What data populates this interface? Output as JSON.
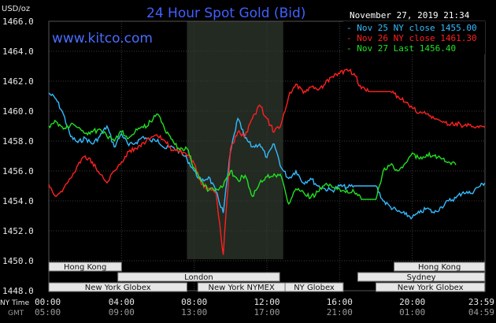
{
  "chart_data": {
    "type": "line",
    "title": "24 Hour Spot Gold (Bid)",
    "site": "www.kitco.com",
    "ylabel": "USD/oz",
    "timestamp": "November 27, 2019 21:34",
    "ylim": [
      1448.0,
      1466.0
    ],
    "yticks": [
      "1466.0",
      "1464.0",
      "1462.0",
      "1460.0",
      "1458.0",
      "1456.0",
      "1454.0",
      "1452.0",
      "1450.0",
      "1448.0"
    ],
    "xlim": [
      0,
      24
    ],
    "xticks_ny": [
      "00:00",
      "04:00",
      "08:00",
      "12:00",
      "16:00",
      "20:00",
      "23:59"
    ],
    "xticks_gmt": [
      "05:00",
      "09:00",
      "13:00",
      "17:00",
      "21:00",
      "01:00",
      "04:59"
    ],
    "xlabel_ny": "NY Time",
    "xlabel_gmt": "GMT",
    "grid": true,
    "legend_position": "top-right",
    "highlight_band_hours": [
      7.6,
      12.9
    ],
    "series": [
      {
        "name": "Nov 25 NY close 1455.00",
        "color": "#33bbff",
        "x": [
          0,
          0.4,
          0.8,
          1.2,
          1.6,
          2.0,
          2.4,
          2.8,
          3.2,
          3.6,
          4.0,
          4.4,
          4.8,
          5.2,
          5.6,
          6.0,
          6.4,
          6.8,
          7.2,
          7.6,
          8.0,
          8.4,
          8.8,
          9.2,
          9.6,
          10.0,
          10.4,
          10.8,
          11.2,
          11.6,
          12.0,
          12.4,
          12.8,
          13.2,
          13.6,
          14.0,
          14.4,
          14.8,
          15.2,
          15.6,
          16.0,
          16.4,
          16.8,
          17.2,
          17.6,
          18.0,
          18.4,
          18.8,
          19.2,
          19.6,
          20.0,
          20.4,
          20.8,
          21.2,
          21.6,
          22.0,
          22.4,
          22.8,
          23.2,
          23.6,
          23.99
        ],
        "values": [
          1461.2,
          1460.8,
          1459.8,
          1458.3,
          1457.9,
          1458.2,
          1457.8,
          1458.3,
          1459.0,
          1457.6,
          1458.5,
          1457.7,
          1457.9,
          1458.3,
          1458.0,
          1458.1,
          1457.5,
          1457.6,
          1457.3,
          1456.8,
          1456.0,
          1455.3,
          1455.6,
          1454.6,
          1453.2,
          1457.3,
          1459.5,
          1458.2,
          1457.6,
          1457.8,
          1456.9,
          1457.8,
          1456.2,
          1455.5,
          1456.0,
          1455.2,
          1455.5,
          1455.0,
          1454.8,
          1454.7,
          1455.0,
          1454.9,
          1455.0,
          1455.0,
          1455.0,
          1455.0,
          1454.0,
          1453.6,
          1453.3,
          1453.1,
          1452.9,
          1453.2,
          1453.5,
          1453.2,
          1453.6,
          1454.0,
          1454.2,
          1454.6,
          1454.5,
          1454.9,
          1455.2
        ]
      },
      {
        "name": "Nov 26 NY close 1461.30",
        "color": "#ff2020",
        "x": [
          0,
          0.4,
          0.8,
          1.2,
          1.6,
          2.0,
          2.4,
          2.8,
          3.2,
          3.6,
          4.0,
          4.4,
          4.8,
          5.2,
          5.6,
          6.0,
          6.4,
          6.8,
          7.2,
          7.6,
          8.0,
          8.4,
          8.8,
          9.2,
          9.6,
          10.0,
          10.4,
          10.8,
          11.2,
          11.6,
          12.0,
          12.4,
          12.8,
          13.2,
          13.6,
          14.0,
          14.4,
          14.8,
          15.2,
          15.6,
          16.0,
          16.4,
          16.8,
          17.2,
          17.6,
          18.0,
          18.4,
          18.8,
          19.2,
          19.6,
          20.0,
          20.4,
          20.8,
          21.2,
          21.6,
          22.0,
          22.4,
          22.8,
          23.2,
          23.6,
          23.99
        ],
        "values": [
          1455.1,
          1454.3,
          1454.8,
          1455.5,
          1456.4,
          1457.0,
          1456.6,
          1455.8,
          1455.2,
          1456.0,
          1456.6,
          1457.3,
          1457.5,
          1457.9,
          1458.2,
          1458.3,
          1458.0,
          1457.4,
          1457.3,
          1457.0,
          1456.5,
          1455.1,
          1454.8,
          1454.5,
          1450.4,
          1457.5,
          1458.6,
          1458.3,
          1459.5,
          1460.4,
          1459.5,
          1458.6,
          1459.2,
          1461.0,
          1461.8,
          1461.2,
          1461.6,
          1461.4,
          1461.8,
          1462.3,
          1462.5,
          1462.8,
          1462.5,
          1461.5,
          1461.3,
          1461.3,
          1461.3,
          1461.3,
          1461.0,
          1460.6,
          1460.2,
          1459.9,
          1459.8,
          1459.5,
          1459.3,
          1459.1,
          1459.2,
          1459.0,
          1459.1,
          1459.0,
          1458.9
        ]
      },
      {
        "name": "Nov 27 Last 1456.40",
        "color": "#22e022",
        "x": [
          0,
          0.4,
          0.8,
          1.2,
          1.6,
          2.0,
          2.4,
          2.8,
          3.2,
          3.6,
          4.0,
          4.4,
          4.8,
          5.2,
          5.6,
          6.0,
          6.4,
          6.8,
          7.2,
          7.6,
          8.0,
          8.4,
          8.8,
          9.2,
          9.6,
          10.0,
          10.4,
          10.8,
          11.2,
          11.6,
          12.0,
          12.4,
          12.8,
          13.2,
          13.6,
          14.0,
          14.4,
          14.8,
          15.2,
          15.6,
          16.0,
          16.4,
          16.8,
          17.2,
          17.6,
          18.0,
          18.4,
          18.8,
          19.2,
          19.6,
          20.0,
          20.4,
          20.8,
          21.2,
          21.6,
          22.0,
          22.4
        ],
        "values": [
          1459.0,
          1459.3,
          1458.8,
          1459.1,
          1458.9,
          1458.5,
          1458.6,
          1458.8,
          1458.3,
          1458.0,
          1458.6,
          1458.2,
          1458.8,
          1458.9,
          1459.3,
          1459.8,
          1458.7,
          1458.1,
          1457.4,
          1457.5,
          1456.2,
          1455.3,
          1454.7,
          1454.8,
          1455.0,
          1456.0,
          1455.4,
          1455.7,
          1454.3,
          1455.2,
          1455.6,
          1455.8,
          1455.6,
          1453.8,
          1454.8,
          1454.6,
          1454.2,
          1454.6,
          1455.1,
          1454.9,
          1454.8,
          1454.7,
          1454.6,
          1454.1,
          1454.1,
          1454.1,
          1456.0,
          1456.4,
          1456.0,
          1456.5,
          1457.2,
          1456.8,
          1457.1,
          1457.0,
          1456.8,
          1456.6,
          1456.4
        ]
      }
    ],
    "markets": [
      {
        "name": "Hong Kong",
        "row": 1,
        "start": 0.0,
        "end": 4.0
      },
      {
        "name": "London",
        "row": 2,
        "start": 3.8,
        "end": 12.7
      },
      {
        "name": "New York Globex",
        "row": 3,
        "start": 0.0,
        "end": 7.6
      },
      {
        "name": "New York NYMEX",
        "row": 3,
        "start": 8.2,
        "end": 13.0
      },
      {
        "name": "NY Globex",
        "row": 3,
        "start": 13.0,
        "end": 16.2
      },
      {
        "name": "Hong Kong",
        "row": 1,
        "start": 19.0,
        "end": 23.99
      },
      {
        "name": "Sydney",
        "row": 2,
        "start": 17.0,
        "end": 23.99
      },
      {
        "name": "New York Globex",
        "row": 3,
        "start": 18.0,
        "end": 23.99
      }
    ]
  }
}
